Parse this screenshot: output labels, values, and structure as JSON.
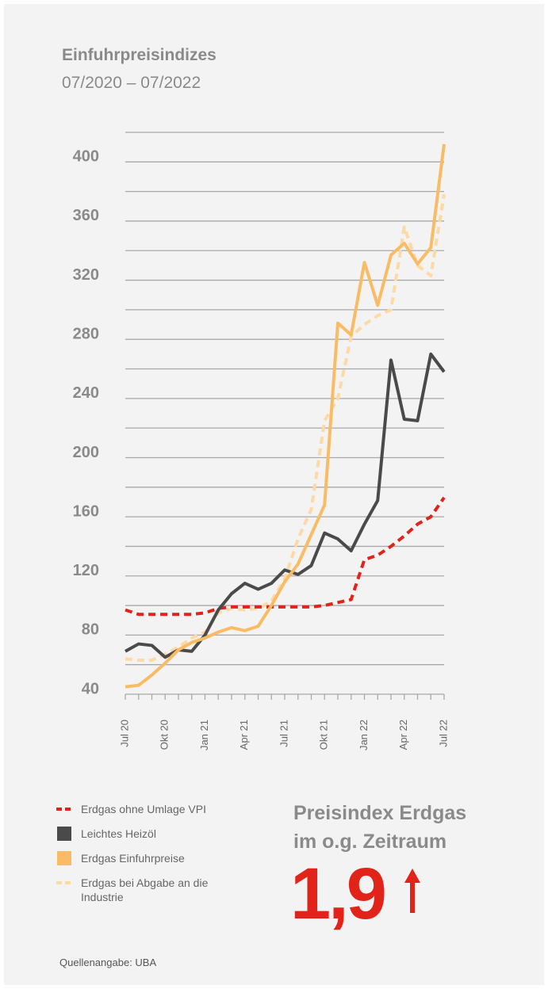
{
  "chart_data": {
    "type": "line",
    "title": "Einfuhrpreisindizes",
    "subtitle": "07/2020 – 07/2022",
    "categories": [
      "Jul 20",
      null,
      null,
      "Okt 20",
      null,
      null,
      "Jan 21",
      null,
      null,
      "Apr 21",
      null,
      null,
      "Jul 21",
      null,
      null,
      "Okt 21",
      null,
      null,
      "Jan 22",
      null,
      null,
      "Apr 22",
      null,
      null,
      "Jul 22"
    ],
    "series": [
      {
        "name": "Erdgas ohne Umlage VPI",
        "color": "#e2231a",
        "dash": true,
        "values": [
          97,
          94,
          94,
          94,
          94,
          94,
          95,
          98,
          99,
          99,
          99,
          99,
          99,
          99,
          99,
          100,
          102,
          104,
          131,
          134,
          140,
          147,
          155,
          160,
          173
        ]
      },
      {
        "name": "Leichtes Heizöl",
        "color": "#4a4a4a",
        "dash": false,
        "values": [
          69,
          74,
          73,
          65,
          70,
          69,
          80,
          97,
          108,
          115,
          111,
          115,
          124,
          121,
          127,
          149,
          145,
          137,
          155,
          171,
          266,
          226,
          225,
          270,
          258
        ]
      },
      {
        "name": "Erdgas Einfuhrpreise",
        "color": "#f9bc64",
        "dash": false,
        "values": [
          45,
          46,
          53,
          61,
          70,
          75,
          78,
          82,
          85,
          83,
          86,
          100,
          116,
          128,
          148,
          168,
          291,
          283,
          332,
          303,
          337,
          345,
          331,
          342,
          412
        ]
      },
      {
        "name": "Erdgas bei Abgabe an die Industrie",
        "color": "#fdd9a6",
        "dash": true,
        "values": [
          64,
          63,
          63,
          67,
          72,
          78,
          82,
          95,
          98,
          97,
          98,
          103,
          118,
          145,
          165,
          225,
          240,
          282,
          290,
          296,
          300,
          356,
          330,
          323,
          378
        ]
      }
    ],
    "ylim": [
      40,
      420
    ],
    "yticks": [
      40,
      80,
      120,
      160,
      200,
      240,
      280,
      320,
      360,
      400
    ],
    "grid_lines": [
      40,
      60,
      80,
      100,
      120,
      140,
      160,
      180,
      200,
      220,
      240,
      260,
      280,
      300,
      320,
      340,
      360,
      380,
      400,
      420
    ],
    "highlight": {
      "line1": "Preisindex Erdgas",
      "line2": "im o.g. Zeitraum",
      "value": "1,9"
    },
    "source": "Quellenangabe: UBA"
  }
}
